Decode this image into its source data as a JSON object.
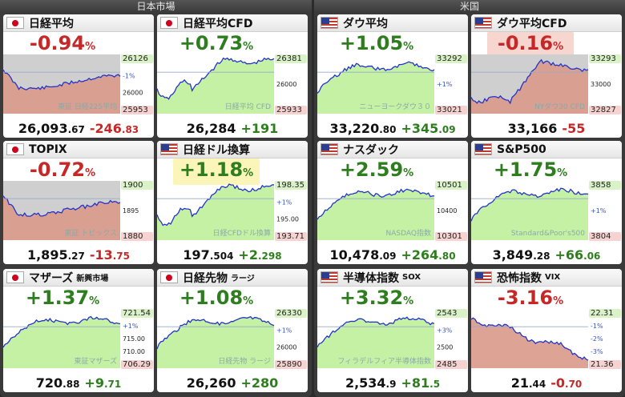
{
  "sections": {
    "japan": "日本市場",
    "us": "米国"
  },
  "colors": {
    "up": "#2e7d1e",
    "down": "#c62828",
    "fill_up": "#bff09a",
    "fill_down": "#d9998a",
    "line": "#2233cc"
  },
  "cards": [
    {
      "id": "nikkei",
      "flag": "jp",
      "name": "日経平均",
      "sub": "",
      "pct": "-0.94",
      "unit": "%",
      "dir": "down",
      "hl": "",
      "price_int": "26,093",
      "price_dec": ".67",
      "chg_int": "-246",
      "chg_dec": ".83",
      "watermark": "東証 日経225平均",
      "labels": [
        "26126",
        "-1%",
        "26000",
        "25953"
      ],
      "trend": "down"
    },
    {
      "id": "nikkei-cfd",
      "flag": "jp",
      "name": "日経平均CFD",
      "sub": "",
      "pct": "+0.73",
      "unit": "%",
      "dir": "up",
      "hl": "",
      "price_int": "26,284",
      "price_dec": "",
      "chg_int": "+191",
      "chg_dec": "",
      "watermark": "日経平均 CFD",
      "labels": [
        "26381",
        "26000",
        "25933"
      ],
      "trend": "vup"
    },
    {
      "id": "dow",
      "flag": "us",
      "name": "ダウ平均",
      "sub": "",
      "pct": "+1.05",
      "unit": "%",
      "dir": "up",
      "hl": "",
      "price_int": "33,220",
      "price_dec": ".80",
      "chg_int": "+345",
      "chg_dec": ".09",
      "watermark": "ニューヨークダウ３０",
      "labels": [
        "33292",
        "+1%",
        "33021"
      ],
      "trend": "up"
    },
    {
      "id": "dow-cfd",
      "flag": "us",
      "name": "ダウ平均CFD",
      "sub": "",
      "pct": "-0.16",
      "unit": "%",
      "dir": "down",
      "hl": "red",
      "price_int": "33,166",
      "price_dec": "",
      "chg_int": "-55",
      "chg_dec": "",
      "watermark": "NYダウ30 CFD",
      "labels": [
        "33293",
        "33000",
        "32827"
      ],
      "trend": "vupd"
    },
    {
      "id": "topix",
      "flag": "jp",
      "name": "TOPIX",
      "sub": "",
      "pct": "-0.72",
      "unit": "%",
      "dir": "down",
      "hl": "",
      "price_int": "1,895",
      "price_dec": ".27",
      "chg_int": "-13",
      "chg_dec": ".75",
      "watermark": "東証 トピックス",
      "labels": [
        "1900",
        "1895",
        "1880"
      ],
      "trend": "down"
    },
    {
      "id": "nikkei-usd",
      "flag": "us",
      "name": "日経ドル換算",
      "sub": "",
      "pct": "+1.18",
      "unit": "%",
      "dir": "up",
      "hl": "yellow",
      "price_int": "197",
      "price_dec": ".504",
      "chg_int": "+2",
      "chg_dec": ".298",
      "watermark": "日経CFDドル換算",
      "labels": [
        "198.35",
        "+1%",
        "195.00",
        "193.71"
      ],
      "trend": "vup"
    },
    {
      "id": "nasdaq",
      "flag": "us",
      "name": "ナスダック",
      "sub": "",
      "pct": "+2.59",
      "unit": "%",
      "dir": "up",
      "hl": "",
      "price_int": "10,478",
      "price_dec": ".09",
      "chg_int": "+264",
      "chg_dec": ".80",
      "watermark": "NASDAQ指数",
      "labels": [
        "10501",
        "10400",
        "10301"
      ],
      "trend": "up"
    },
    {
      "id": "sp500",
      "flag": "us",
      "name": "S&P500",
      "sub": "",
      "pct": "+1.75",
      "unit": "%",
      "dir": "up",
      "hl": "",
      "price_int": "3,849",
      "price_dec": ".28",
      "chg_int": "+66",
      "chg_dec": ".06",
      "watermark": "Standard&Poor's500",
      "labels": [
        "3858",
        "+1%",
        "3804"
      ],
      "trend": "up"
    },
    {
      "id": "mothers",
      "flag": "jp",
      "name": "マザーズ",
      "sub": "新興市場",
      "pct": "+1.37",
      "unit": "%",
      "dir": "up",
      "hl": "",
      "price_int": "720",
      "price_dec": ".88",
      "chg_int": "+9",
      "chg_dec": ".71",
      "watermark": "東証マザーズ",
      "labels": [
        "721.54",
        "+1%",
        "715.00",
        "710.00",
        "706.29"
      ],
      "trend": "up"
    },
    {
      "id": "nikkei-futures",
      "flag": "jp",
      "name": "日経先物",
      "sub": "ラージ",
      "pct": "+1.08",
      "unit": "%",
      "dir": "up",
      "hl": "",
      "price_int": "26,260",
      "price_dec": "",
      "chg_int": "+280",
      "chg_dec": "",
      "watermark": "日経先物 ラージ",
      "labels": [
        "26330",
        "+1%",
        "26000",
        "25890"
      ],
      "trend": "up"
    },
    {
      "id": "sox",
      "flag": "us",
      "name": "半導体指数",
      "sub": "SOX",
      "pct": "+3.32",
      "unit": "%",
      "dir": "up",
      "hl": "",
      "price_int": "2,534",
      "price_dec": ".9",
      "chg_int": "+81",
      "chg_dec": ".5",
      "watermark": "フィラデルフィア半導体指数",
      "labels": [
        "2543",
        "+3%",
        "2500",
        "2485"
      ],
      "trend": "up"
    },
    {
      "id": "vix",
      "flag": "us",
      "name": "恐怖指数",
      "sub": "VIX",
      "pct": "-3.16",
      "unit": "%",
      "dir": "down",
      "hl": "",
      "price_int": "21",
      "price_dec": ".44",
      "chg_int": "-0",
      "chg_dec": ".70",
      "watermark": "",
      "labels": [
        "22.31",
        "-1%",
        "-2%",
        "-3%",
        "21.36"
      ],
      "trend": "fall"
    }
  ]
}
